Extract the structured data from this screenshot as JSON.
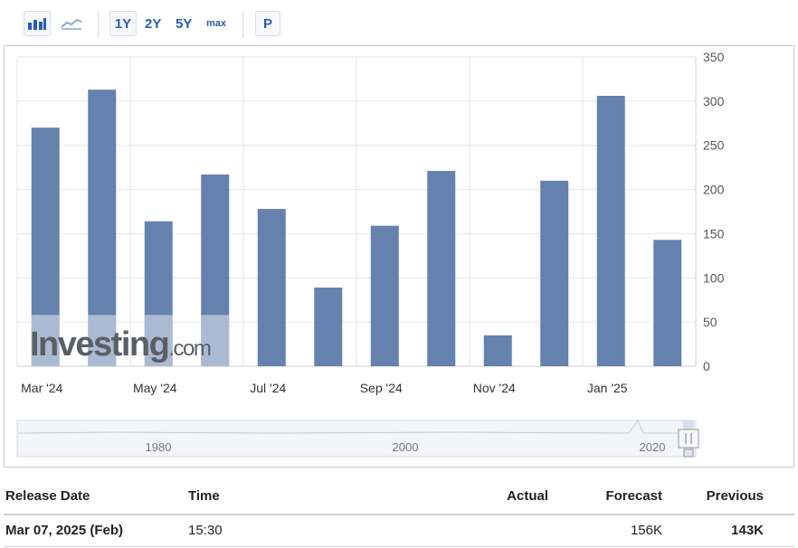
{
  "toolbar": {
    "icons": [
      "bar-chart-icon",
      "line-chart-icon"
    ],
    "ranges": [
      "1Y",
      "2Y",
      "5Y",
      "max"
    ],
    "selected_range": "1Y",
    "p_label": "P"
  },
  "watermark": {
    "brand": "Investing",
    "suffix": ".com"
  },
  "colors": {
    "bar": "#6482ad",
    "accent": "#2a5db0",
    "watermark": "#5a5f66"
  },
  "chart_data": {
    "type": "bar",
    "categories": [
      "Mar '24",
      "Apr '24",
      "May '24",
      "Jun '24",
      "Jul '24",
      "Aug '24",
      "Sep '24",
      "Oct '24",
      "Nov '24",
      "Dec '24",
      "Jan '25",
      "Feb '25"
    ],
    "x_tick_labels": [
      "Mar '24",
      "May '24",
      "Jul '24",
      "Sep '24",
      "Nov '24",
      "Jan '25"
    ],
    "values": [
      270,
      313,
      164,
      217,
      178,
      89,
      159,
      221,
      35,
      210,
      306,
      143
    ],
    "y_ticks": [
      0,
      50,
      100,
      150,
      200,
      250,
      300,
      350
    ],
    "ylim": [
      0,
      350
    ],
    "grid": true,
    "y_axis_side": "right",
    "navigator_labels": [
      "1980",
      "2000",
      "2020"
    ]
  },
  "table": {
    "headers": {
      "release_date": "Release Date",
      "time": "Time",
      "actual": "Actual",
      "forecast": "Forecast",
      "previous": "Previous"
    },
    "rows": [
      {
        "release_date": "Mar 07, 2025 (Feb)",
        "time": "15:30",
        "actual": "",
        "forecast": "156K",
        "previous": "143K"
      }
    ]
  }
}
